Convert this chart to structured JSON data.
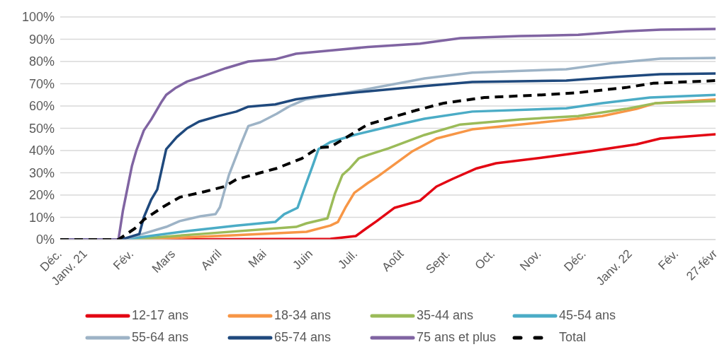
{
  "chart_data": {
    "type": "line",
    "ylim": [
      0,
      100
    ],
    "yticks": [
      {
        "value": 0,
        "label": "0%"
      },
      {
        "value": 10,
        "label": "10%"
      },
      {
        "value": 20,
        "label": "20%"
      },
      {
        "value": 30,
        "label": "30%"
      },
      {
        "value": 40,
        "label": "40%"
      },
      {
        "value": 50,
        "label": "50%"
      },
      {
        "value": 60,
        "label": "60%"
      },
      {
        "value": 70,
        "label": "70%"
      },
      {
        "value": 80,
        "label": "80%"
      },
      {
        "value": 90,
        "label": "90%"
      },
      {
        "value": 100,
        "label": "100%"
      }
    ],
    "xlim": [
      "2020-12-15",
      "2022-02-27"
    ],
    "xticks": [
      {
        "value": "2020-12-15",
        "label": "Déc."
      },
      {
        "value": "2021-01-01",
        "label": "Janv. 21"
      },
      {
        "value": "2021-02-01",
        "label": "Fév."
      },
      {
        "value": "2021-03-01",
        "label": "Mars"
      },
      {
        "value": "2021-04-01",
        "label": "Avril"
      },
      {
        "value": "2021-05-01",
        "label": "Mai"
      },
      {
        "value": "2021-06-01",
        "label": "Juin"
      },
      {
        "value": "2021-07-01",
        "label": "Juil."
      },
      {
        "value": "2021-08-01",
        "label": "Août"
      },
      {
        "value": "2021-09-01",
        "label": "Sept."
      },
      {
        "value": "2021-10-01",
        "label": "Oct."
      },
      {
        "value": "2021-11-01",
        "label": "Nov."
      },
      {
        "value": "2021-12-01",
        "label": "Déc."
      },
      {
        "value": "2022-01-01",
        "label": "Janv. 22"
      },
      {
        "value": "2022-02-01",
        "label": "Fév."
      },
      {
        "value": "2022-02-27",
        "label": "27-févr"
      }
    ],
    "grid": "y",
    "legend": "bottom",
    "series": [
      {
        "name": "12-17 ans",
        "color": "#e30613",
        "x": [
          "2020-12-15",
          "2021-02-02",
          "2021-06-14",
          "2021-07-01",
          "2021-07-08",
          "2021-07-15",
          "2021-07-27",
          "2021-08-13",
          "2021-08-24",
          "2021-09-04",
          "2021-09-20",
          "2021-10-03",
          "2021-11-03",
          "2021-12-05",
          "2022-01-05",
          "2022-01-21",
          "2022-02-27"
        ],
        "values": [
          0,
          0,
          0.3,
          1.6,
          5,
          8.3,
          14.3,
          17.5,
          23.8,
          27.3,
          32,
          34.3,
          36.8,
          39.7,
          42.8,
          45.4,
          47.3
        ]
      },
      {
        "name": "18-34 ans",
        "color": "#f79646",
        "x": [
          "2020-12-15",
          "2021-02-02",
          "2021-04-12",
          "2021-05-29",
          "2021-06-14",
          "2021-06-19",
          "2021-06-24",
          "2021-06-30",
          "2021-07-09",
          "2021-07-15",
          "2021-08-08",
          "2021-08-24",
          "2021-09-17",
          "2021-11-03",
          "2021-12-13",
          "2022-01-05",
          "2022-01-18",
          "2022-02-27"
        ],
        "values": [
          0,
          0,
          2,
          3.5,
          6.3,
          7.9,
          14.3,
          21,
          25.4,
          28,
          39.7,
          45.4,
          49.5,
          52.7,
          55.5,
          58.7,
          61.3,
          62.9
        ]
      },
      {
        "name": "35-44 ans",
        "color": "#9bbb59",
        "x": [
          "2020-12-15",
          "2021-01-29",
          "2021-03-19",
          "2021-05-22",
          "2021-05-29",
          "2021-06-12",
          "2021-06-17",
          "2021-06-22",
          "2021-06-27",
          "2021-07-03",
          "2021-07-09",
          "2021-07-23",
          "2021-08-16",
          "2021-09-09",
          "2021-10-19",
          "2021-11-27",
          "2021-12-29",
          "2022-01-18",
          "2022-02-27"
        ],
        "values": [
          0,
          0,
          2.5,
          5.7,
          7.3,
          9.5,
          20.6,
          29,
          32,
          36.5,
          38,
          41,
          47,
          51.7,
          54,
          55.5,
          58.7,
          61.3,
          62.2
        ]
      },
      {
        "name": "45-54 ans",
        "color": "#4bacc6",
        "x": [
          "2020-12-15",
          "2021-01-26",
          "2021-03-12",
          "2021-04-12",
          "2021-05-08",
          "2021-05-14",
          "2021-05-23",
          "2021-05-28",
          "2021-06-02",
          "2021-06-06",
          "2021-06-14",
          "2021-06-30",
          "2021-07-23",
          "2021-08-16",
          "2021-09-17",
          "2021-11-19",
          "2021-12-13",
          "2022-01-14",
          "2022-02-27"
        ],
        "values": [
          0,
          0,
          4,
          6.3,
          7.9,
          11.4,
          14.3,
          23.8,
          33,
          40.6,
          43.8,
          47,
          50.7,
          54.3,
          57.5,
          59,
          61.3,
          63.8,
          65
        ]
      },
      {
        "name": "55-64 ans",
        "color": "#9db3c6",
        "x": [
          "2020-12-15",
          "2021-01-26",
          "2021-02-08",
          "2021-02-24",
          "2021-03-05",
          "2021-03-19",
          "2021-03-29",
          "2021-04-01",
          "2021-04-07",
          "2021-04-15",
          "2021-04-20",
          "2021-04-28",
          "2021-05-09",
          "2021-05-17",
          "2021-05-28",
          "2021-07-09",
          "2021-08-16",
          "2021-09-17",
          "2021-11-19",
          "2021-12-21",
          "2022-01-21",
          "2022-02-27"
        ],
        "values": [
          0,
          0,
          2.5,
          5.7,
          8.3,
          10.5,
          11.4,
          14.6,
          29,
          42.8,
          51,
          52.7,
          56.5,
          59.7,
          62.9,
          67.6,
          72.4,
          75,
          76.5,
          79.4,
          81.3,
          81.6
        ]
      },
      {
        "name": "65-74 ans",
        "color": "#1f497d",
        "x": [
          "2020-12-15",
          "2021-01-25",
          "2021-02-06",
          "2021-02-09",
          "2021-02-14",
          "2021-02-18",
          "2021-02-24",
          "2021-03-03",
          "2021-03-10",
          "2021-03-18",
          "2021-03-31",
          "2021-04-12",
          "2021-04-20",
          "2021-05-08",
          "2021-05-22",
          "2021-06-06",
          "2021-07-09",
          "2021-08-16",
          "2021-09-17",
          "2021-11-19",
          "2021-12-21",
          "2022-01-21",
          "2022-02-27"
        ],
        "values": [
          0,
          0,
          2.5,
          10,
          18,
          22.5,
          40.6,
          46,
          50,
          53,
          55.5,
          57.5,
          59.7,
          60.7,
          63,
          64.4,
          66.6,
          69,
          70.8,
          71.4,
          73,
          74.3,
          74.6
        ]
      },
      {
        "name": "75 ans et plus",
        "color": "#8064a2",
        "x": [
          "2020-12-15",
          "2021-01-23",
          "2021-01-26",
          "2021-02-01",
          "2021-02-04",
          "2021-02-09",
          "2021-02-14",
          "2021-02-21",
          "2021-02-24",
          "2021-03-02",
          "2021-03-10",
          "2021-03-19",
          "2021-04-05",
          "2021-04-20",
          "2021-05-08",
          "2021-05-22",
          "2021-06-15",
          "2021-07-09",
          "2021-08-13",
          "2021-09-09",
          "2021-10-19",
          "2021-11-27",
          "2021-12-29",
          "2022-01-21",
          "2022-02-27"
        ],
        "values": [
          0,
          0,
          13,
          33,
          40,
          49,
          54,
          62,
          65,
          68,
          71,
          73,
          77,
          80,
          81,
          83.5,
          85,
          86.5,
          88,
          90.5,
          91.4,
          92,
          93.6,
          94.3,
          94.6
        ]
      },
      {
        "name": "Total",
        "color": "#000000",
        "line_style": "dashed",
        "x": [
          "2020-12-15",
          "2021-01-23",
          "2021-02-03",
          "2021-02-09",
          "2021-02-21",
          "2021-03-05",
          "2021-03-22",
          "2021-04-04",
          "2021-04-12",
          "2021-04-28",
          "2021-05-09",
          "2021-05-26",
          "2021-06-06",
          "2021-06-14",
          "2021-06-22",
          "2021-07-09",
          "2021-08-10",
          "2021-08-29",
          "2021-09-25",
          "2021-11-03",
          "2021-11-27",
          "2021-12-29",
          "2022-01-16",
          "2022-02-27"
        ],
        "values": [
          0,
          0,
          5,
          8.9,
          14.3,
          19,
          21.6,
          23.8,
          27,
          30,
          32,
          36.5,
          41.3,
          41.6,
          44.8,
          51.7,
          58,
          61.3,
          63.8,
          65,
          66,
          68.3,
          70.2,
          71.4
        ]
      }
    ]
  }
}
